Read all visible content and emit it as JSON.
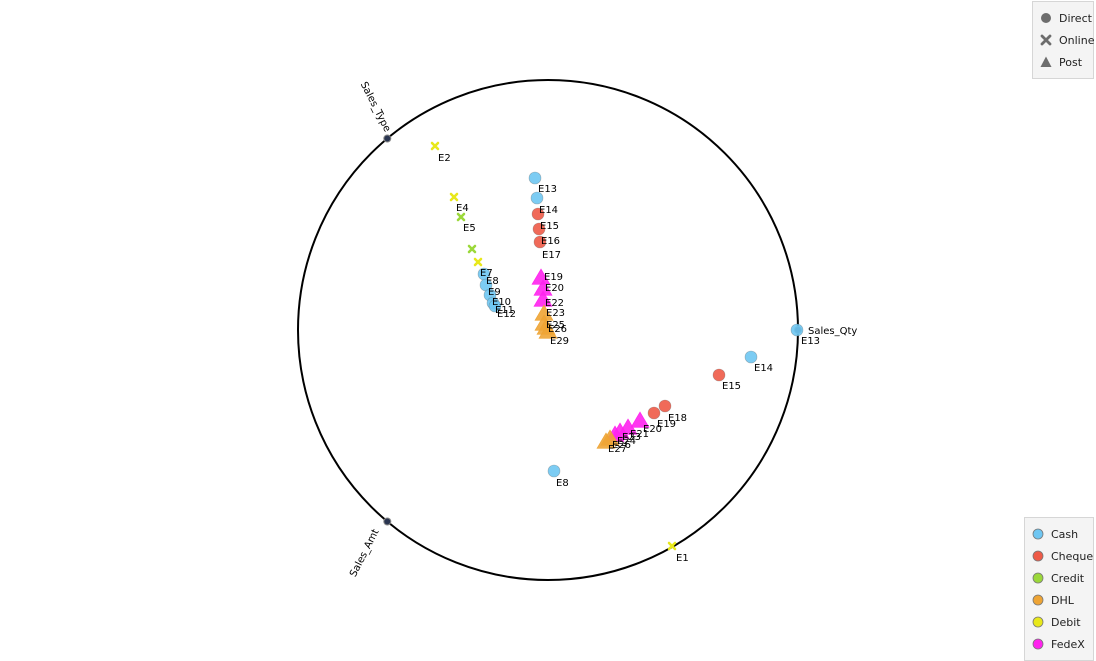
{
  "chart_data": {
    "type": "scatter",
    "axes": [
      {
        "label": "Sales_Type"
      },
      {
        "label": "Sales_Qty"
      },
      {
        "label": "Sales_Amt"
      }
    ],
    "shape_legend": [
      {
        "label": "Direct",
        "shape": "circle"
      },
      {
        "label": "Online",
        "shape": "cross"
      },
      {
        "label": "Post",
        "shape": "triangle"
      }
    ],
    "color_legend": [
      {
        "label": "Cash",
        "color": "#6ec6f2"
      },
      {
        "label": "Cheque",
        "color": "#ee5a47"
      },
      {
        "label": "Credit",
        "color": "#9bd83a"
      },
      {
        "label": "DHL",
        "color": "#eea434"
      },
      {
        "label": "Debit",
        "color": "#e8e81a"
      },
      {
        "label": "FedeX",
        "color": "#ff22ee"
      }
    ],
    "points": [
      {
        "id": "E2",
        "group": "Online",
        "color": "#e8e81a"
      },
      {
        "id": "E4",
        "group": "Online",
        "color": "#e8e81a"
      },
      {
        "id": "E5",
        "group": "Online",
        "color": "#9bd83a"
      },
      {
        "id": "",
        "group": "Online",
        "color": "#9bd83a"
      },
      {
        "id": "E7",
        "group": "Online",
        "color": "#e8e81a"
      },
      {
        "id": "E8",
        "group": "Direct",
        "color": "#6ec6f2"
      },
      {
        "id": "E9",
        "group": "Direct",
        "color": "#6ec6f2"
      },
      {
        "id": "E10",
        "group": "Direct",
        "color": "#6ec6f2"
      },
      {
        "id": "E11",
        "group": "Direct",
        "color": "#6ec6f2"
      },
      {
        "id": "E12",
        "group": "Direct",
        "color": "#6ec6f2"
      },
      {
        "id": "E13",
        "group": "Direct",
        "color": "#6ec6f2"
      },
      {
        "id": "E14",
        "group": "Direct",
        "color": "#6ec6f2"
      },
      {
        "id": "E15",
        "group": "Direct",
        "color": "#ee5a47"
      },
      {
        "id": "E16",
        "group": "Direct",
        "color": "#ee5a47"
      },
      {
        "id": "E17",
        "group": "Direct",
        "color": "#ee5a47"
      },
      {
        "id": "E19",
        "group": "Post",
        "color": "#ff22ee"
      },
      {
        "id": "E20",
        "group": "Post",
        "color": "#ff22ee"
      },
      {
        "id": "E22",
        "group": "Post",
        "color": "#ff22ee"
      },
      {
        "id": "E23",
        "group": "Post",
        "color": "#eea434"
      },
      {
        "id": "E25",
        "group": "Post",
        "color": "#eea434"
      },
      {
        "id": "E26",
        "group": "Post",
        "color": "#eea434"
      },
      {
        "id": "E29",
        "group": "Post",
        "color": "#eea434"
      },
      {
        "id": "E13",
        "group": "Direct",
        "color": "#6ec6f2"
      },
      {
        "id": "E14",
        "group": "Direct",
        "color": "#6ec6f2"
      },
      {
        "id": "E15",
        "group": "Direct",
        "color": "#ee5a47"
      },
      {
        "id": "E18",
        "group": "Direct",
        "color": "#ee5a47"
      },
      {
        "id": "E19",
        "group": "Direct",
        "color": "#ee5a47"
      },
      {
        "id": "E20",
        "group": "Post",
        "color": "#ff22ee"
      },
      {
        "id": "E21",
        "group": "Post",
        "color": "#ff22ee"
      },
      {
        "id": "E23",
        "group": "Post",
        "color": "#ff22ee"
      },
      {
        "id": "E24",
        "group": "Post",
        "color": "#ff22ee"
      },
      {
        "id": "E26",
        "group": "Post",
        "color": "#eea434"
      },
      {
        "id": "E27",
        "group": "Post",
        "color": "#eea434"
      },
      {
        "id": "E8",
        "group": "Direct",
        "color": "#6ec6f2"
      },
      {
        "id": "E1",
        "group": "Online",
        "color": "#e8e81a"
      }
    ]
  }
}
